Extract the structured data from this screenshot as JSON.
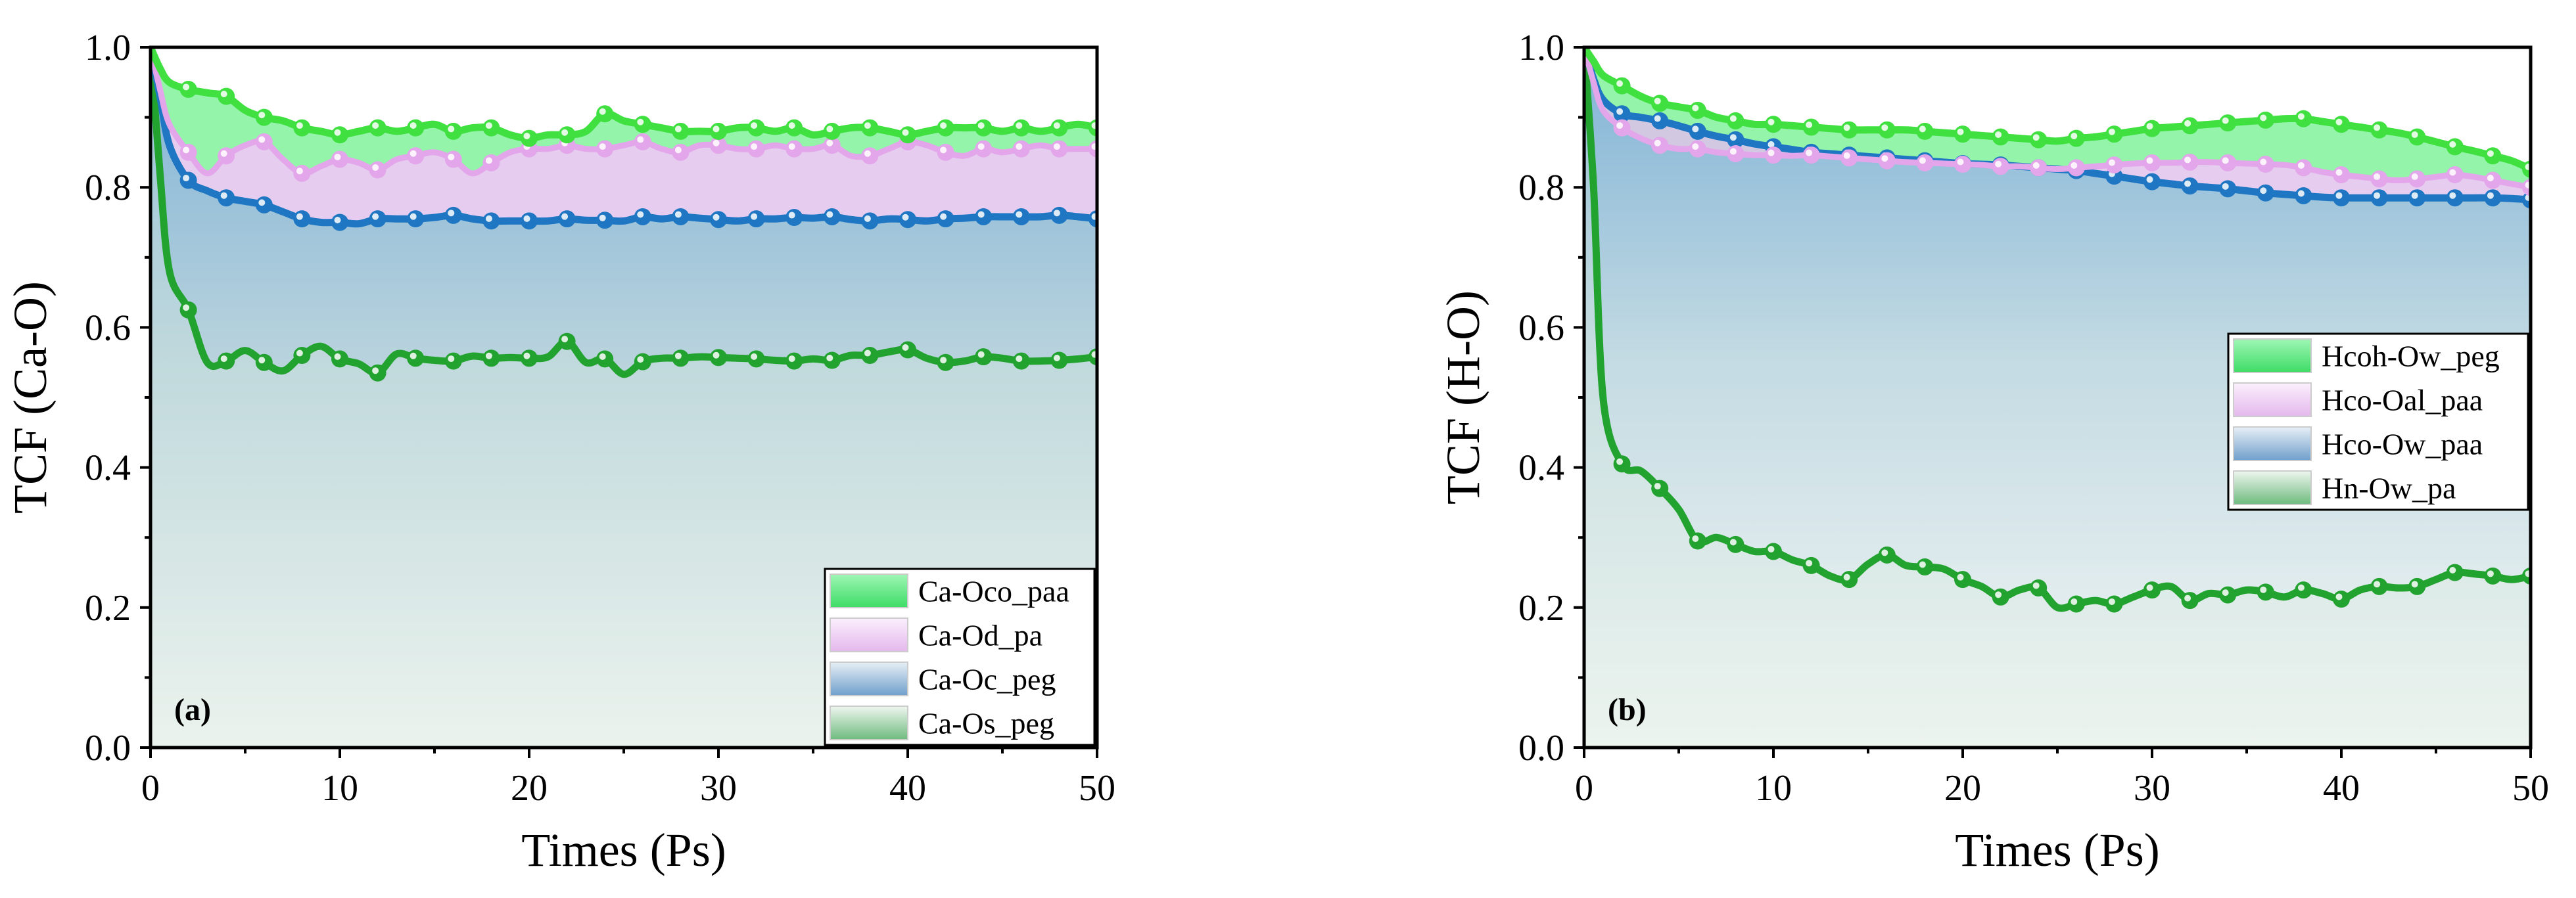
{
  "chart_data": [
    {
      "type": "line",
      "panel_label": "(a)",
      "xlabel": "Times (Ps)",
      "ylabel": "TCF (Ca-O)",
      "xlim": [
        0,
        50
      ],
      "ylim": [
        0,
        1.0
      ],
      "xticks": [
        "0",
        "10",
        "20",
        "30",
        "40",
        "50"
      ],
      "yticks": [
        "0.0",
        "0.2",
        "0.4",
        "0.6",
        "0.8",
        "1.0"
      ],
      "legend_position": "bottom-right",
      "series": [
        {
          "name": "Ca-Oco_paa",
          "line_color": "#3fe03f",
          "fill_color": "#66ee88",
          "x": [
            0,
            0.5,
            1,
            2,
            3,
            4,
            5,
            6,
            7,
            8,
            9,
            10,
            11,
            12,
            13,
            14,
            15,
            16,
            17,
            18,
            19,
            20,
            21,
            22,
            23,
            24,
            25,
            26,
            27,
            28,
            29,
            30,
            31,
            32,
            33,
            34,
            35,
            36,
            37,
            38,
            39,
            40,
            41,
            42,
            43,
            44,
            45,
            46,
            47,
            48,
            49,
            50
          ],
          "values": [
            1.0,
            0.97,
            0.95,
            0.94,
            0.935,
            0.93,
            0.91,
            0.9,
            0.895,
            0.885,
            0.88,
            0.875,
            0.88,
            0.885,
            0.88,
            0.885,
            0.89,
            0.88,
            0.885,
            0.885,
            0.875,
            0.87,
            0.875,
            0.875,
            0.88,
            0.905,
            0.895,
            0.89,
            0.885,
            0.88,
            0.88,
            0.88,
            0.885,
            0.885,
            0.88,
            0.885,
            0.875,
            0.88,
            0.885,
            0.885,
            0.88,
            0.875,
            0.88,
            0.885,
            0.885,
            0.885,
            0.88,
            0.885,
            0.88,
            0.885,
            0.89,
            0.885
          ],
          "marker_every": 2
        },
        {
          "name": "Ca-Od_pa",
          "line_color": "#e3a6ea",
          "fill_color": "#e9c8ef",
          "x": [
            0,
            0.5,
            1,
            2,
            3,
            4,
            5,
            6,
            7,
            8,
            9,
            10,
            11,
            12,
            13,
            14,
            15,
            16,
            17,
            18,
            19,
            20,
            21,
            22,
            23,
            24,
            25,
            26,
            27,
            28,
            29,
            30,
            31,
            32,
            33,
            34,
            35,
            36,
            37,
            38,
            39,
            40,
            41,
            42,
            43,
            44,
            45,
            46,
            47,
            48,
            49,
            50
          ],
          "values": [
            1.0,
            0.94,
            0.89,
            0.85,
            0.82,
            0.845,
            0.86,
            0.865,
            0.84,
            0.82,
            0.83,
            0.84,
            0.835,
            0.825,
            0.84,
            0.845,
            0.85,
            0.84,
            0.82,
            0.835,
            0.85,
            0.855,
            0.855,
            0.86,
            0.855,
            0.855,
            0.86,
            0.865,
            0.855,
            0.85,
            0.86,
            0.86,
            0.855,
            0.855,
            0.86,
            0.855,
            0.855,
            0.86,
            0.845,
            0.845,
            0.855,
            0.865,
            0.86,
            0.85,
            0.845,
            0.855,
            0.85,
            0.855,
            0.86,
            0.855,
            0.855,
            0.855
          ],
          "marker_every": 2
        },
        {
          "name": "Ca-Oc_peg",
          "line_color": "#1f77c4",
          "fill_color": "#8fb5d3",
          "x": [
            0,
            0.5,
            1,
            2,
            3,
            4,
            5,
            6,
            7,
            8,
            9,
            10,
            11,
            12,
            13,
            14,
            15,
            16,
            17,
            18,
            19,
            20,
            21,
            22,
            23,
            24,
            25,
            26,
            27,
            28,
            29,
            30,
            31,
            32,
            33,
            34,
            35,
            36,
            37,
            38,
            39,
            40,
            41,
            42,
            43,
            44,
            45,
            46,
            47,
            48,
            49,
            50
          ],
          "values": [
            1.0,
            0.93,
            0.86,
            0.81,
            0.795,
            0.785,
            0.78,
            0.775,
            0.765,
            0.755,
            0.75,
            0.75,
            0.748,
            0.755,
            0.755,
            0.755,
            0.757,
            0.76,
            0.755,
            0.752,
            0.752,
            0.752,
            0.752,
            0.755,
            0.753,
            0.753,
            0.752,
            0.758,
            0.755,
            0.758,
            0.756,
            0.754,
            0.752,
            0.755,
            0.755,
            0.757,
            0.756,
            0.758,
            0.754,
            0.752,
            0.755,
            0.754,
            0.752,
            0.755,
            0.756,
            0.758,
            0.758,
            0.758,
            0.758,
            0.76,
            0.758,
            0.755
          ],
          "marker_every": 2
        },
        {
          "name": "Ca-Os_peg",
          "line_color": "#22a22f",
          "fill_color": "#bcd9c4",
          "x": [
            0,
            0.5,
            1,
            2,
            3,
            4,
            5,
            6,
            7,
            8,
            9,
            10,
            11,
            12,
            13,
            14,
            15,
            16,
            17,
            18,
            19,
            20,
            21,
            22,
            23,
            24,
            25,
            26,
            27,
            28,
            29,
            30,
            31,
            32,
            33,
            34,
            35,
            36,
            37,
            38,
            39,
            40,
            41,
            42,
            43,
            44,
            45,
            46,
            47,
            48,
            49,
            50
          ],
          "values": [
            1.0,
            0.82,
            0.68,
            0.625,
            0.55,
            0.552,
            0.567,
            0.55,
            0.538,
            0.56,
            0.573,
            0.555,
            0.548,
            0.535,
            0.562,
            0.556,
            0.553,
            0.552,
            0.559,
            0.556,
            0.557,
            0.556,
            0.558,
            0.58,
            0.55,
            0.555,
            0.533,
            0.551,
            0.556,
            0.556,
            0.558,
            0.557,
            0.556,
            0.555,
            0.553,
            0.552,
            0.555,
            0.553,
            0.56,
            0.56,
            0.565,
            0.568,
            0.556,
            0.55,
            0.552,
            0.558,
            0.556,
            0.552,
            0.552,
            0.553,
            0.555,
            0.558
          ],
          "marker_every": 2
        }
      ]
    },
    {
      "type": "line",
      "panel_label": "(b)",
      "xlabel": "Times (Ps)",
      "ylabel": "TCF (H-O)",
      "xlim": [
        0,
        50
      ],
      "ylim": [
        0,
        1.0
      ],
      "xticks": [
        "0",
        "10",
        "20",
        "30",
        "40",
        "50"
      ],
      "yticks": [
        "0.0",
        "0.2",
        "0.4",
        "0.6",
        "0.8",
        "1.0"
      ],
      "legend_position": "center-right",
      "series": [
        {
          "name": "Hcoh-Ow_peg",
          "line_color": "#3fe03f",
          "fill_color": "#66ee88",
          "x": [
            0,
            0.5,
            1,
            2,
            3,
            4,
            5,
            6,
            7,
            8,
            9,
            10,
            11,
            12,
            13,
            14,
            15,
            16,
            17,
            18,
            19,
            20,
            21,
            22,
            23,
            24,
            25,
            26,
            27,
            28,
            29,
            30,
            31,
            32,
            33,
            34,
            35,
            36,
            37,
            38,
            39,
            40,
            41,
            42,
            43,
            44,
            45,
            46,
            47,
            48,
            49,
            50
          ],
          "values": [
            1.0,
            0.98,
            0.96,
            0.945,
            0.93,
            0.92,
            0.915,
            0.91,
            0.9,
            0.895,
            0.89,
            0.89,
            0.888,
            0.886,
            0.884,
            0.882,
            0.882,
            0.882,
            0.882,
            0.88,
            0.878,
            0.876,
            0.874,
            0.872,
            0.87,
            0.868,
            0.866,
            0.87,
            0.872,
            0.876,
            0.88,
            0.884,
            0.886,
            0.888,
            0.89,
            0.892,
            0.894,
            0.896,
            0.898,
            0.898,
            0.894,
            0.89,
            0.886,
            0.882,
            0.878,
            0.872,
            0.865,
            0.858,
            0.852,
            0.845,
            0.838,
            0.826
          ],
          "marker_every": 2
        },
        {
          "name": "Hco-Oal_paa",
          "line_color": "#e3a6ea",
          "fill_color": "#e9c8ef",
          "x": [
            0,
            0.5,
            1,
            2,
            3,
            4,
            5,
            6,
            7,
            8,
            9,
            10,
            11,
            12,
            13,
            14,
            15,
            16,
            17,
            18,
            19,
            20,
            21,
            22,
            23,
            24,
            25,
            26,
            27,
            28,
            29,
            30,
            31,
            32,
            33,
            34,
            35,
            36,
            37,
            38,
            39,
            40,
            41,
            42,
            43,
            44,
            45,
            46,
            47,
            48,
            49,
            50
          ],
          "values": [
            1.0,
            0.95,
            0.91,
            0.885,
            0.87,
            0.86,
            0.855,
            0.855,
            0.85,
            0.848,
            0.846,
            0.846,
            0.845,
            0.846,
            0.844,
            0.842,
            0.84,
            0.838,
            0.836,
            0.835,
            0.834,
            0.833,
            0.832,
            0.83,
            0.83,
            0.828,
            0.826,
            0.828,
            0.83,
            0.832,
            0.834,
            0.835,
            0.835,
            0.836,
            0.836,
            0.835,
            0.834,
            0.833,
            0.832,
            0.828,
            0.822,
            0.818,
            0.815,
            0.812,
            0.81,
            0.812,
            0.815,
            0.818,
            0.815,
            0.81,
            0.805,
            0.8
          ],
          "marker_every": 2
        },
        {
          "name": "Hco-Ow_paa",
          "line_color": "#1f77c4",
          "fill_color": "#8fb5d3",
          "x": [
            0,
            0.5,
            1,
            2,
            3,
            4,
            5,
            6,
            7,
            8,
            9,
            10,
            11,
            12,
            13,
            14,
            15,
            16,
            17,
            18,
            19,
            20,
            21,
            22,
            23,
            24,
            25,
            26,
            27,
            28,
            29,
            30,
            31,
            32,
            33,
            34,
            35,
            36,
            37,
            38,
            39,
            40,
            41,
            42,
            43,
            44,
            45,
            46,
            47,
            48,
            49,
            50
          ],
          "values": [
            1.0,
            0.955,
            0.925,
            0.905,
            0.9,
            0.895,
            0.888,
            0.88,
            0.873,
            0.868,
            0.862,
            0.858,
            0.854,
            0.85,
            0.848,
            0.846,
            0.844,
            0.842,
            0.84,
            0.838,
            0.836,
            0.834,
            0.833,
            0.832,
            0.83,
            0.828,
            0.826,
            0.824,
            0.82,
            0.816,
            0.812,
            0.808,
            0.805,
            0.802,
            0.8,
            0.798,
            0.795,
            0.792,
            0.79,
            0.788,
            0.786,
            0.785,
            0.785,
            0.785,
            0.785,
            0.785,
            0.785,
            0.785,
            0.785,
            0.785,
            0.784,
            0.782
          ],
          "marker_every": 2
        },
        {
          "name": "Hn-Ow_pa",
          "line_color": "#22a22f",
          "fill_color": "#bcd9c4",
          "x": [
            0,
            0.5,
            1,
            2,
            3,
            4,
            5,
            6,
            7,
            8,
            9,
            10,
            11,
            12,
            13,
            14,
            15,
            16,
            17,
            18,
            19,
            20,
            21,
            22,
            23,
            24,
            25,
            26,
            27,
            28,
            29,
            30,
            31,
            32,
            33,
            34,
            35,
            36,
            37,
            38,
            39,
            40,
            41,
            42,
            43,
            44,
            45,
            46,
            47,
            48,
            49,
            50
          ],
          "values": [
            1.0,
            0.8,
            0.5,
            0.405,
            0.395,
            0.37,
            0.34,
            0.295,
            0.3,
            0.29,
            0.28,
            0.28,
            0.268,
            0.26,
            0.245,
            0.24,
            0.262,
            0.275,
            0.26,
            0.258,
            0.255,
            0.24,
            0.23,
            0.215,
            0.225,
            0.228,
            0.2,
            0.205,
            0.21,
            0.205,
            0.215,
            0.225,
            0.23,
            0.21,
            0.22,
            0.218,
            0.225,
            0.222,
            0.215,
            0.225,
            0.22,
            0.212,
            0.225,
            0.23,
            0.228,
            0.23,
            0.24,
            0.25,
            0.248,
            0.245,
            0.24,
            0.245
          ],
          "marker_every": 2
        }
      ]
    }
  ]
}
